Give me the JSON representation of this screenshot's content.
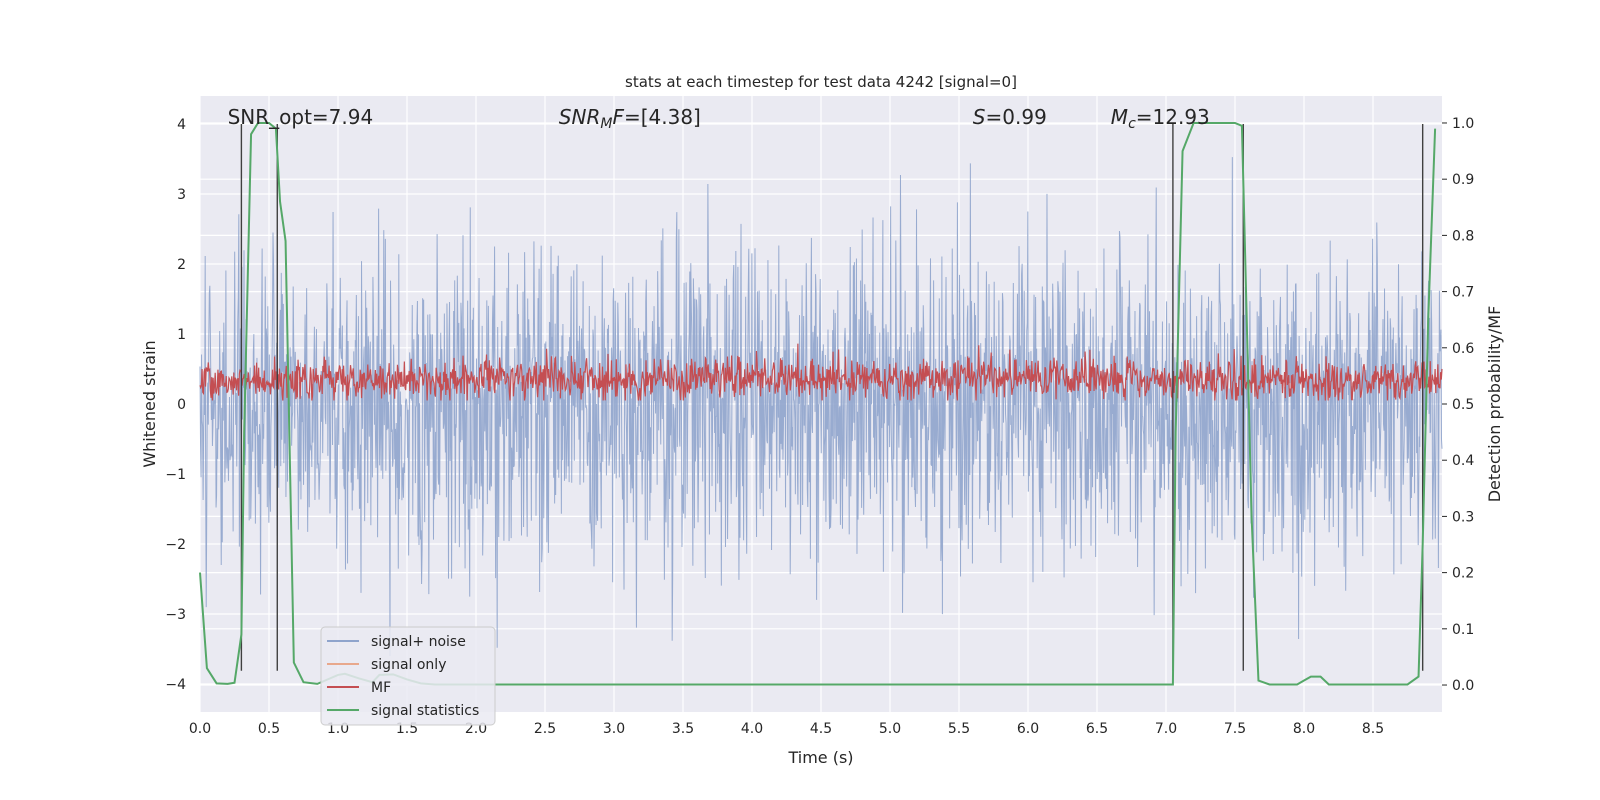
{
  "chart_data": {
    "type": "line",
    "title": "stats at each timestep for test data 4242 [signal=0]",
    "xlabel": "Time (s)",
    "ylabel": "Whitened strain",
    "y2label": "Detection probability/MF",
    "xlim": [
      0,
      9.0
    ],
    "ylim": [
      -4.4,
      4.4
    ],
    "y2lim": [
      -0.048,
      1.048
    ],
    "grid": true,
    "x_ticks": [
      0.0,
      0.5,
      1.0,
      1.5,
      2.0,
      2.5,
      3.0,
      3.5,
      4.0,
      4.5,
      5.0,
      5.5,
      6.0,
      6.5,
      7.0,
      7.5,
      8.0,
      8.5
    ],
    "x_tick_labels": [
      "0.0",
      "0.5",
      "1.0",
      "1.5",
      "2.0",
      "2.5",
      "3.0",
      "3.5",
      "4.0",
      "4.5",
      "5.0",
      "5.5",
      "6.0",
      "6.5",
      "7.0",
      "7.5",
      "8.0",
      "8.5"
    ],
    "y_ticks": [
      4,
      3,
      2,
      1,
      0,
      -1,
      -2,
      -3,
      -4
    ],
    "y_tick_labels": [
      "4",
      "3",
      "2",
      "1",
      "0",
      "−1",
      "−2",
      "−3",
      "−4"
    ],
    "y2_ticks": [
      1.0,
      0.9,
      0.8,
      0.7,
      0.6,
      0.5,
      0.4,
      0.3,
      0.2,
      0.1,
      0.0
    ],
    "y2_tick_labels": [
      "1.0",
      "0.9",
      "0.8",
      "0.7",
      "0.6",
      "0.5",
      "0.4",
      "0.3",
      "0.2",
      "0.1",
      "0.0"
    ],
    "annotations": [
      {
        "name": "snr-opt-annotation",
        "text": "SNR_opt=7.94",
        "x": 0.2
      },
      {
        "name": "snr-mf-annotation",
        "text": "SNR_MF=[4.38]",
        "x": 2.6
      },
      {
        "name": "s-annotation",
        "text": "S=0.99",
        "x": 5.6
      },
      {
        "name": "mc-annotation",
        "text": "M_c=12.93",
        "x": 6.6
      }
    ],
    "vertical_markers": [
      0.3,
      0.56,
      7.05,
      7.56,
      8.86
    ],
    "legend": {
      "location": "lower-left",
      "entries": [
        {
          "label": "signal+ noise",
          "color": "#8fa4cc"
        },
        {
          "label": "signal only",
          "color": "#e8a88c"
        },
        {
          "label": "MF",
          "color": "#c44e52"
        },
        {
          "label": "signal statistics",
          "color": "#55a868"
        }
      ]
    },
    "series": [
      {
        "name": "signal statistics",
        "axis": "right",
        "color": "#55a868",
        "x": [
          0.0,
          0.05,
          0.12,
          0.2,
          0.25,
          0.3,
          0.32,
          0.37,
          0.42,
          0.5,
          0.55,
          0.58,
          0.62,
          0.68,
          0.75,
          0.85,
          1.0,
          1.05,
          1.15,
          1.25,
          1.3,
          1.4,
          1.5,
          1.6,
          1.7,
          1.8,
          2.0,
          3.0,
          4.0,
          5.0,
          6.0,
          7.05,
          7.07,
          7.12,
          7.2,
          7.3,
          7.5,
          7.55,
          7.57,
          7.62,
          7.67,
          7.75,
          7.85,
          7.95,
          8.0,
          8.05,
          8.12,
          8.18,
          8.3,
          8.5,
          8.75,
          8.83,
          8.86,
          8.9,
          8.95
        ],
        "values": [
          0.2,
          0.03,
          0.003,
          0.002,
          0.004,
          0.09,
          0.45,
          0.98,
          1.0,
          1.0,
          0.99,
          0.86,
          0.79,
          0.04,
          0.005,
          0.002,
          0.018,
          0.02,
          0.012,
          0.005,
          0.018,
          0.019,
          0.01,
          0.003,
          0.001,
          0.001,
          0.001,
          0.001,
          0.001,
          0.001,
          0.001,
          0.001,
          0.45,
          0.95,
          1.0,
          1.0,
          1.0,
          0.995,
          0.8,
          0.3,
          0.008,
          0.001,
          0.001,
          0.001,
          0.008,
          0.015,
          0.015,
          0.001,
          0.001,
          0.001,
          0.001,
          0.015,
          0.25,
          0.65,
          0.99
        ]
      },
      {
        "name": "signal+ noise",
        "axis": "left",
        "color": "#8fa4cc",
        "style": "dense noise trace",
        "x_range": [
          0.0,
          9.0
        ],
        "typical_amplitude": 2.2,
        "max_value": 4.0,
        "min_value": -3.6
      },
      {
        "name": "MF",
        "axis": "left",
        "color": "#c44e52",
        "style": "dense noise trace",
        "x_range": [
          0.0,
          9.0
        ],
        "center": 0.35,
        "typical_amplitude": 0.3,
        "max_value": 1.0,
        "min_value": 0.05
      }
    ]
  }
}
